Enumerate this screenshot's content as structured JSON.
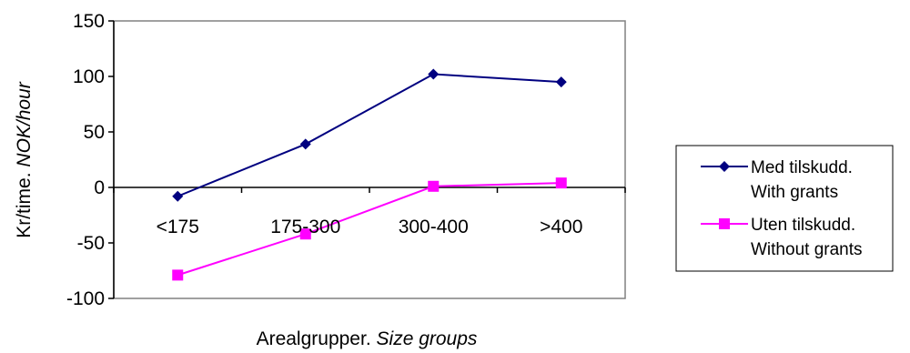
{
  "chart_data": {
    "type": "line",
    "categories": [
      "<175",
      "175-300",
      "300-400",
      ">400"
    ],
    "series": [
      {
        "name": "Med tilskudd.",
        "name_en": "With grants",
        "color": "#000080",
        "marker": "diamond",
        "values": [
          -8,
          39,
          102,
          95
        ]
      },
      {
        "name": "Uten tilskudd.",
        "name_en": "Without grants",
        "color": "#FF00FF",
        "marker": "square",
        "values": [
          -79,
          -42,
          1,
          4
        ]
      }
    ],
    "xlabel": "Arealgrupper.",
    "xlabel_en": "Size groups",
    "ylabel": "Kr/time.",
    "ylabel_en": "NOK/hour",
    "ylim": [
      -100,
      150
    ],
    "yticks": [
      "150",
      "100",
      "50",
      "0",
      "-50",
      "-100"
    ],
    "ytick_values": [
      150,
      100,
      50,
      0,
      -50,
      -100
    ],
    "grid": false,
    "legend_position": "right"
  }
}
